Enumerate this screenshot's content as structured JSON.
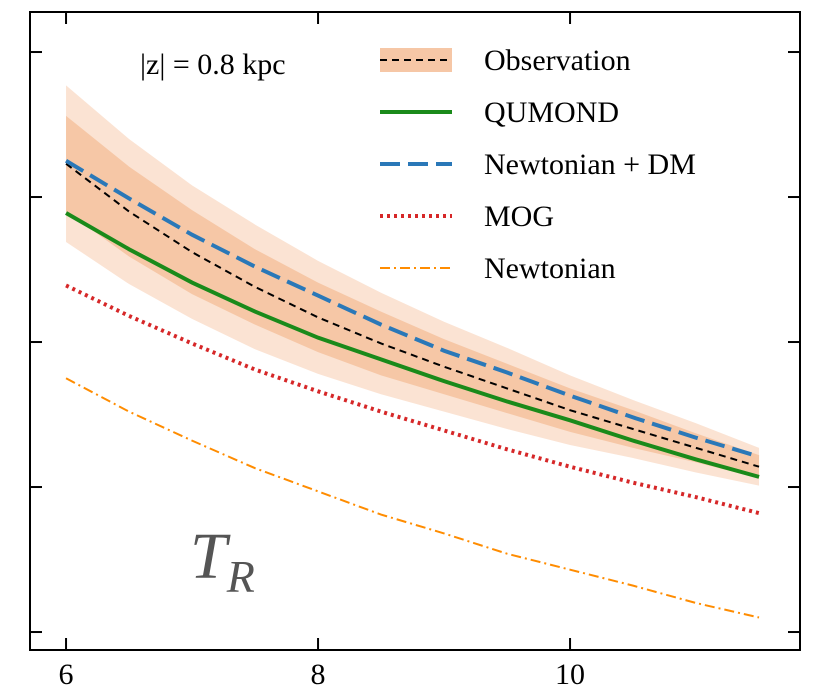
{
  "chart_data": {
    "type": "line",
    "annotation": "|z| = 0.8 kpc",
    "panel_label": {
      "main": "T",
      "sub": "R"
    },
    "x": [
      6,
      6.5,
      7,
      7.5,
      8,
      8.5,
      9,
      9.5,
      10,
      10.5,
      11,
      11.5
    ],
    "xlim": [
      5.714,
      11.825
    ],
    "xticks": [
      6,
      8,
      10
    ],
    "ylim": [
      0.876,
      5.276
    ],
    "yticks": [
      1,
      2,
      3,
      4,
      5
    ],
    "bands": [
      {
        "color": "#fbe3d3",
        "lower": [
          3.69,
          3.4,
          3.16,
          2.95,
          2.78,
          2.64,
          2.52,
          2.4,
          2.29,
          2.2,
          2.1,
          2.01
        ],
        "upper": [
          4.77,
          4.4,
          4.08,
          3.81,
          3.56,
          3.34,
          3.14,
          2.96,
          2.77,
          2.6,
          2.44,
          2.27
        ]
      },
      {
        "color": "#f6c7a6",
        "lower": [
          3.9,
          3.59,
          3.33,
          3.12,
          2.93,
          2.77,
          2.64,
          2.51,
          2.38,
          2.27,
          2.17,
          2.06
        ],
        "upper": [
          4.56,
          4.21,
          3.91,
          3.64,
          3.41,
          3.21,
          3.02,
          2.85,
          2.68,
          2.53,
          2.37,
          2.22
        ]
      }
    ],
    "series": [
      {
        "name": "Observation",
        "color": "#000000",
        "dash": "7,5",
        "width": 2,
        "values": [
          4.23,
          3.9,
          3.62,
          3.38,
          3.17,
          2.99,
          2.83,
          2.68,
          2.53,
          2.4,
          2.27,
          2.14
        ]
      },
      {
        "name": "QUMOND",
        "color": "#1a8a1a",
        "dash": "none",
        "width": 4,
        "values": [
          3.89,
          3.64,
          3.41,
          3.21,
          3.03,
          2.88,
          2.73,
          2.59,
          2.46,
          2.32,
          2.19,
          2.07
        ]
      },
      {
        "name": "Newtonian + DM",
        "color": "#2a78b8",
        "dash": "20,8",
        "width": 4,
        "values": [
          4.25,
          3.99,
          3.74,
          3.52,
          3.32,
          3.12,
          2.94,
          2.79,
          2.63,
          2.48,
          2.34,
          2.21
        ]
      },
      {
        "name": "MOG",
        "color": "#d62728",
        "dash": "3,4",
        "width": 4,
        "values": [
          3.39,
          3.18,
          2.99,
          2.81,
          2.66,
          2.52,
          2.39,
          2.26,
          2.14,
          2.03,
          1.93,
          1.82
        ]
      },
      {
        "name": "Newtonian",
        "color": "#ff8c00",
        "dash": "10,4,2,4",
        "width": 2,
        "values": [
          2.75,
          2.52,
          2.32,
          2.13,
          1.97,
          1.81,
          1.68,
          1.54,
          1.43,
          1.32,
          1.2,
          1.1
        ]
      }
    ]
  }
}
